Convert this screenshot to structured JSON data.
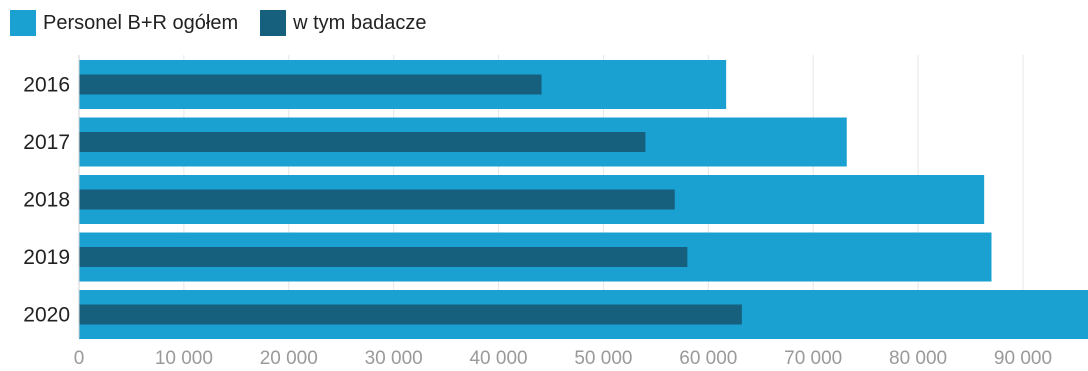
{
  "chart_data": {
    "type": "bar",
    "orientation": "horizontal",
    "categories": [
      "2016",
      "2017",
      "2018",
      "2019",
      "2020"
    ],
    "series": [
      {
        "name": "Personel B+R ogółem",
        "color": "#1aa0d1",
        "values": [
          61700,
          73200,
          86300,
          87000,
          96200
        ]
      },
      {
        "name": "w tym badacze",
        "color": "#16607e",
        "values": [
          44100,
          54000,
          56800,
          58000,
          63200
        ]
      }
    ],
    "xlim": [
      0,
      96200
    ],
    "xticks": [
      0,
      10000,
      20000,
      30000,
      40000,
      50000,
      60000,
      70000,
      80000,
      90000
    ],
    "xtick_labels": [
      "0",
      "10 000",
      "20 000",
      "30 000",
      "40 000",
      "50 000",
      "60 000",
      "70 000",
      "80 000",
      "90 000"
    ],
    "grid": "vertical",
    "legend": "top-left",
    "title": "",
    "xlabel": "",
    "ylabel": ""
  }
}
